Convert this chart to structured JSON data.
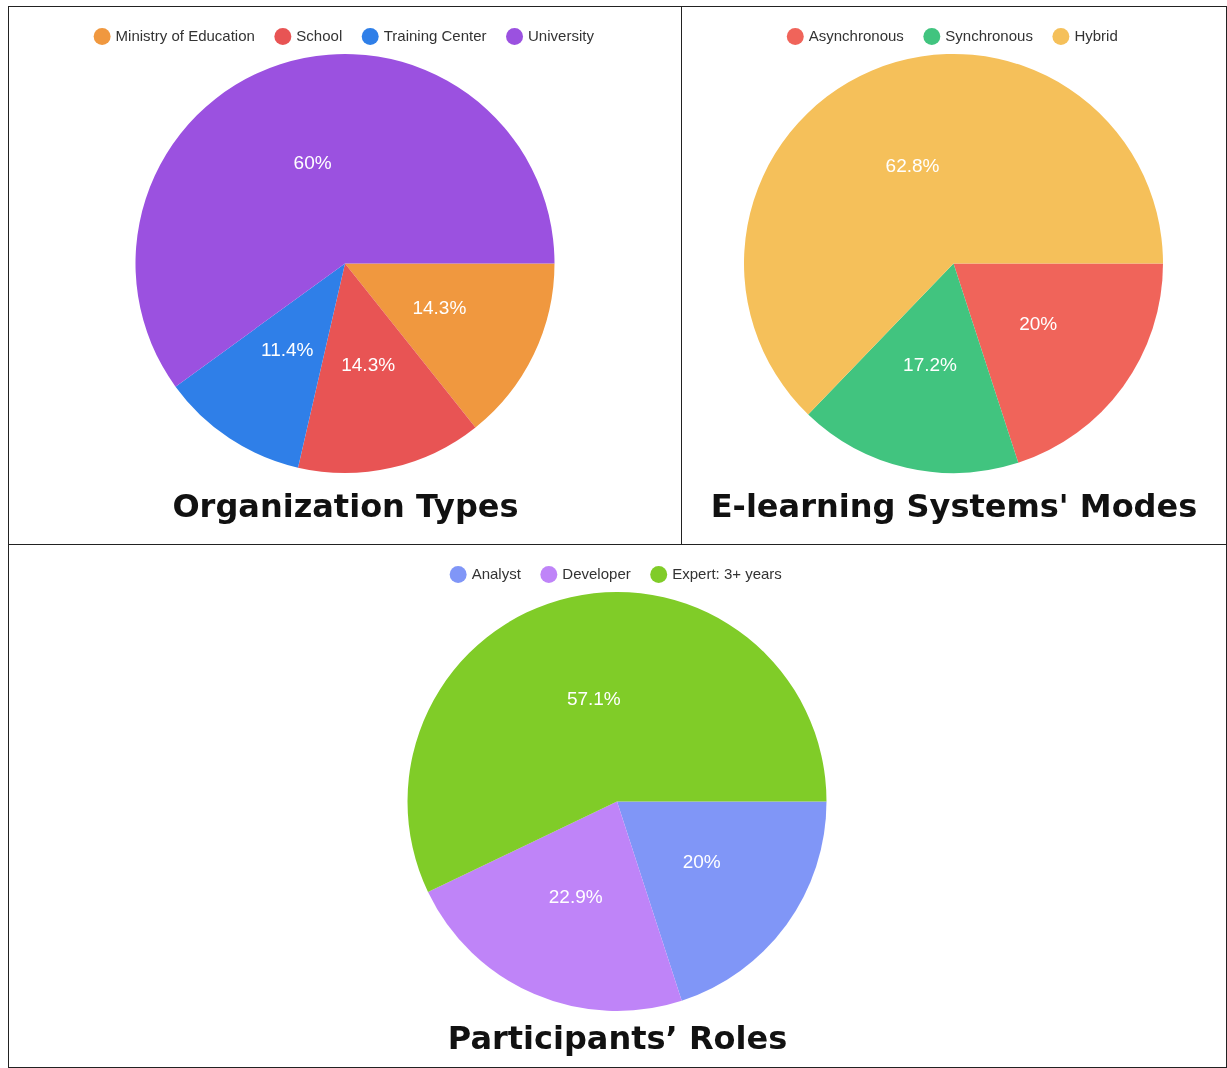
{
  "chart_data": [
    {
      "type": "pie",
      "title": "Organization Types",
      "categories": [
        "Ministry of Education",
        "School",
        "Training Center",
        "University"
      ],
      "values": [
        14.3,
        14.3,
        11.4,
        60
      ],
      "colors": [
        "#f0983f",
        "#e85454",
        "#2f7fe8",
        "#9b51e0"
      ],
      "value_labels": [
        "14.3%",
        "14.3%",
        "11.4%",
        "60%"
      ],
      "legend": "top"
    },
    {
      "type": "pie",
      "title": "E-learning Systems' Modes",
      "categories": [
        "Asynchronous",
        "Synchronous",
        "Hybrid"
      ],
      "values": [
        20,
        17.2,
        62.8
      ],
      "colors": [
        "#f0645a",
        "#41c47f",
        "#f5c05a"
      ],
      "value_labels": [
        "20%",
        "17.2%",
        "62.8%"
      ],
      "legend": "top"
    },
    {
      "type": "pie",
      "title": "Participants’ Roles",
      "categories": [
        "Analyst",
        "Developer",
        "Expert: 3+ years"
      ],
      "values": [
        20,
        22.9,
        57.1
      ],
      "colors": [
        "#8096f7",
        "#bf84f8",
        "#80cc28"
      ],
      "value_labels": [
        "20%",
        "22.9%",
        "57.1%"
      ],
      "legend": "top"
    }
  ]
}
